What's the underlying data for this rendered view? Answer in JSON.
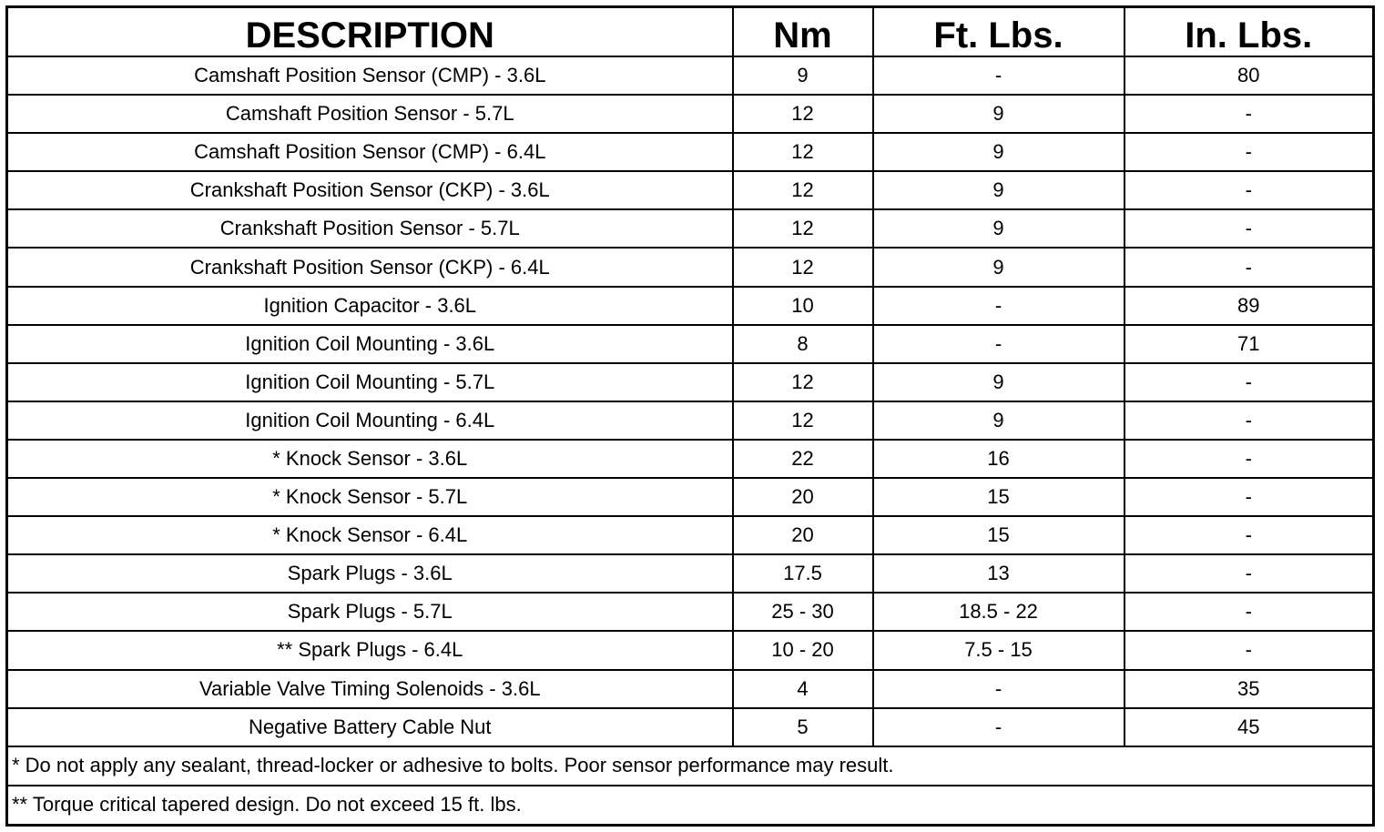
{
  "table": {
    "header": [
      "DESCRIPTION",
      "Nm",
      "Ft. Lbs.",
      "In. Lbs."
    ],
    "rows": [
      [
        "Camshaft Position Sensor (CMP) - 3.6L",
        "9",
        "-",
        "80"
      ],
      [
        "Camshaft Position Sensor - 5.7L",
        "12",
        "9",
        "-"
      ],
      [
        "Camshaft Position Sensor (CMP) - 6.4L",
        "12",
        "9",
        "-"
      ],
      [
        "Crankshaft Position Sensor (CKP) - 3.6L",
        "12",
        "9",
        "-"
      ],
      [
        "Crankshaft Position Sensor - 5.7L",
        "12",
        "9",
        "-"
      ],
      [
        "Crankshaft Position Sensor (CKP) - 6.4L",
        "12",
        "9",
        "-"
      ],
      [
        "Ignition Capacitor - 3.6L",
        "10",
        "-",
        "89"
      ],
      [
        "Ignition Coil Mounting - 3.6L",
        "8",
        "-",
        "71"
      ],
      [
        "Ignition Coil Mounting - 5.7L",
        "12",
        "9",
        "-"
      ],
      [
        "Ignition Coil Mounting - 6.4L",
        "12",
        "9",
        "-"
      ],
      [
        "* Knock Sensor - 3.6L",
        "22",
        "16",
        "-"
      ],
      [
        "* Knock Sensor - 5.7L",
        "20",
        "15",
        "-"
      ],
      [
        "* Knock Sensor - 6.4L",
        "20",
        "15",
        "-"
      ],
      [
        "Spark Plugs - 3.6L",
        "17.5",
        "13",
        "-"
      ],
      [
        "Spark Plugs - 5.7L",
        "25 - 30",
        "18.5 - 22",
        "-"
      ],
      [
        "** Spark Plugs - 6.4L",
        "10 - 20",
        "7.5 - 15",
        "-"
      ],
      [
        "Variable Valve Timing Solenoids - 3.6L",
        "4",
        "-",
        "35"
      ],
      [
        "Negative Battery Cable Nut",
        "5",
        "-",
        "45"
      ]
    ],
    "footnotes": [
      "* Do not apply any sealant, thread-locker or adhesive to bolts. Poor sensor performance may result.",
      "** Torque critical tapered design. Do not exceed 15 ft. lbs."
    ]
  }
}
